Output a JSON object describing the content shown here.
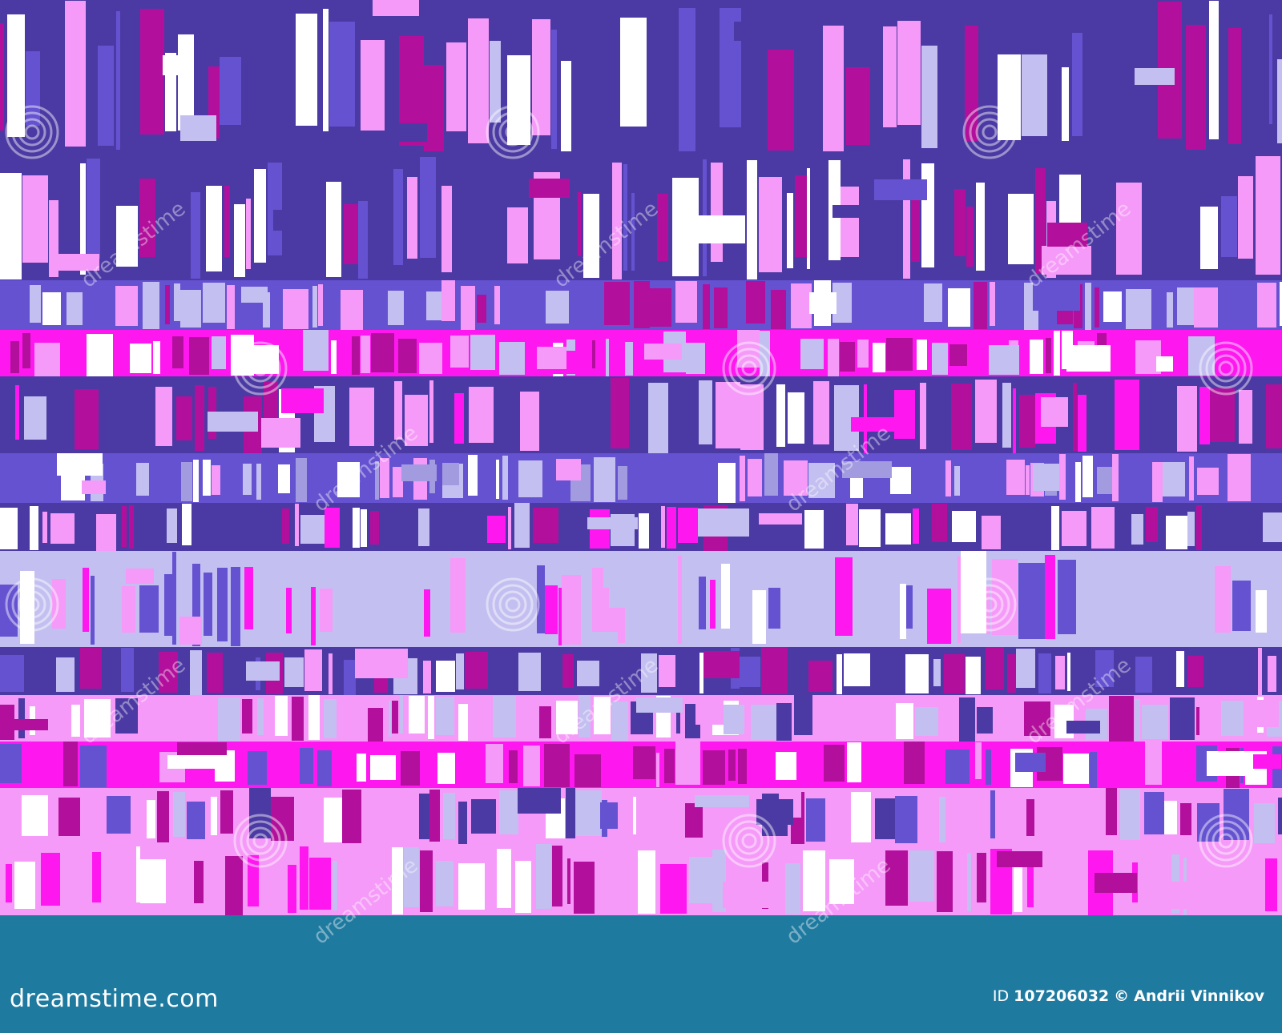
{
  "image": {
    "description_colors": {
      "dark_indigo": "#4b3aa3",
      "violet": "#6552d1",
      "magenta": "#ff17f0",
      "purple_magenta": "#b2109c",
      "light_pink": "#f59af8",
      "lavender": "#c3bff0",
      "periwinkle": "#a39be0",
      "white": "#ffffff"
    },
    "bands": [
      {
        "palette": [
          "#4b3aa3",
          "#b2109c",
          "#f59af8",
          "#ffffff",
          "#6552d1",
          "#c3bff0"
        ],
        "base": "#4b3aa3",
        "tall": true
      },
      {
        "palette": [
          "#4b3aa3",
          "#b2109c",
          "#f59af8",
          "#ffffff",
          "#6552d1"
        ],
        "base": "#4b3aa3",
        "tall": true
      },
      {
        "palette": [
          "#6552d1",
          "#f59af8",
          "#ffffff",
          "#c3bff0",
          "#b2109c"
        ],
        "base": "#6552d1",
        "tall": false
      },
      {
        "palette": [
          "#ff17f0",
          "#b2109c",
          "#ffffff",
          "#f59af8",
          "#c3bff0"
        ],
        "base": "#ff17f0",
        "tall": false
      },
      {
        "palette": [
          "#4b3aa3",
          "#f59af8",
          "#ffffff",
          "#b2109c",
          "#c3bff0",
          "#ff17f0"
        ],
        "base": "#4b3aa3",
        "tall": false
      },
      {
        "palette": [
          "#6552d1",
          "#ffffff",
          "#c3bff0",
          "#f59af8",
          "#a39be0"
        ],
        "base": "#6552d1",
        "tall": false
      },
      {
        "palette": [
          "#4b3aa3",
          "#ffffff",
          "#f59af8",
          "#b2109c",
          "#ff17f0",
          "#c3bff0"
        ],
        "base": "#4b3aa3",
        "tall": false
      },
      {
        "palette": [
          "#c3bff0",
          "#f59af8",
          "#ffffff",
          "#ff17f0",
          "#6552d1"
        ],
        "base": "#c3bff0",
        "tall": true
      },
      {
        "palette": [
          "#4b3aa3",
          "#ffffff",
          "#f59af8",
          "#b2109c",
          "#6552d1",
          "#c3bff0"
        ],
        "base": "#4b3aa3",
        "tall": false
      },
      {
        "palette": [
          "#f59af8",
          "#ffffff",
          "#4b3aa3",
          "#b2109c",
          "#c3bff0"
        ],
        "base": "#f59af8",
        "tall": false
      },
      {
        "palette": [
          "#ff17f0",
          "#ffffff",
          "#b2109c",
          "#f59af8",
          "#6552d1"
        ],
        "base": "#ff17f0",
        "tall": false
      },
      {
        "palette": [
          "#f59af8",
          "#ffffff",
          "#4b3aa3",
          "#c3bff0",
          "#6552d1",
          "#b2109c"
        ],
        "base": "#f59af8",
        "tall": false
      },
      {
        "palette": [
          "#f59af8",
          "#c3bff0",
          "#ffffff",
          "#b2109c",
          "#ff17f0"
        ],
        "base": "#f59af8",
        "tall": false
      }
    ]
  },
  "footer": {
    "background": "#1f7aa0",
    "logo_text": "dreamstime.com",
    "credit_id_label": "ID",
    "credit_id_number": "107206032",
    "copyright_symbol": "©",
    "credit_owner": "Andrii Vinnikov"
  },
  "watermark": {
    "icon": "spiral-icon",
    "text": "dreamstime"
  }
}
